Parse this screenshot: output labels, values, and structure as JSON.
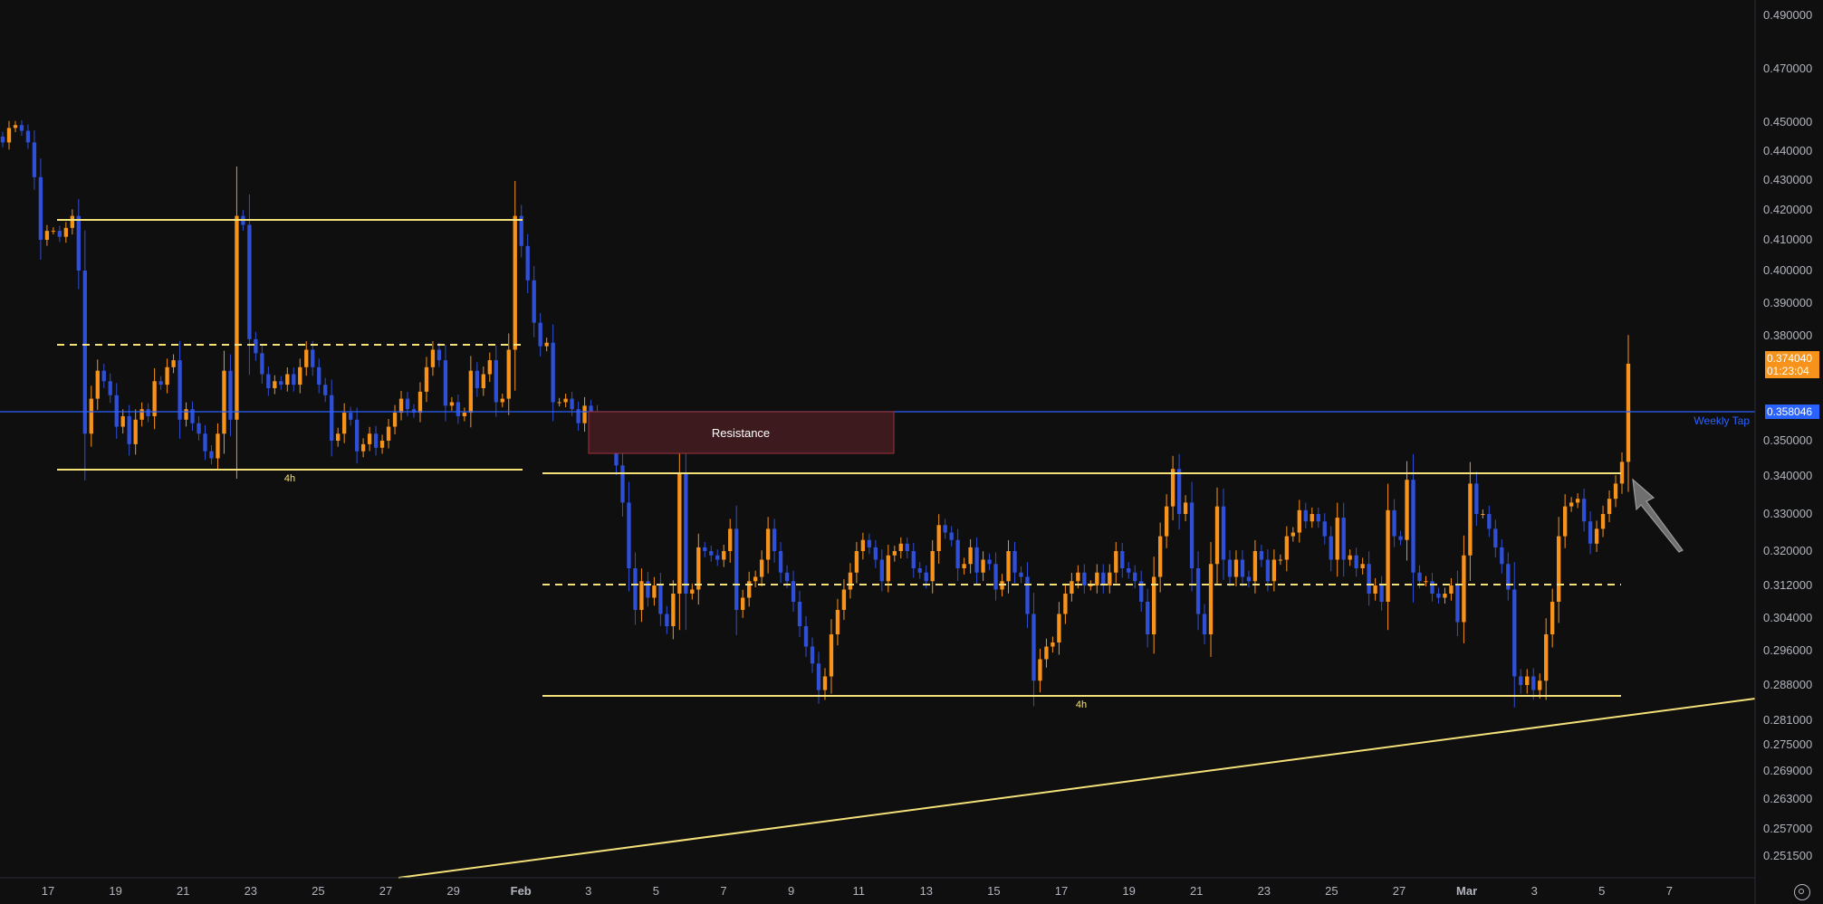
{
  "chart_data": {
    "type": "candlestick",
    "y_axis_ticks": [
      0.49,
      0.47,
      0.45,
      0.44,
      0.43,
      0.42,
      0.41,
      0.4,
      0.39,
      0.38,
      0.35,
      0.34,
      0.33,
      0.32,
      0.312,
      0.304,
      0.296,
      0.288,
      0.281,
      0.275,
      0.269,
      0.263,
      0.257,
      0.2515
    ],
    "y_axis_tick_labels": [
      "0.490000",
      "0.470000",
      "0.450000",
      "0.440000",
      "0.430000",
      "0.420000",
      "0.410000",
      "0.400000",
      "0.390000",
      "0.380000",
      "0.350000",
      "0.340000",
      "0.330000",
      "0.320000",
      "0.312000",
      "0.304000",
      "0.296000",
      "0.288000",
      "0.281000",
      "0.275000",
      "0.269000",
      "0.263000",
      "0.257000",
      "0.251500"
    ],
    "x_axis_ticks": [
      {
        "label": "17",
        "bold": false
      },
      {
        "label": "19",
        "bold": false
      },
      {
        "label": "21",
        "bold": false
      },
      {
        "label": "23",
        "bold": false
      },
      {
        "label": "25",
        "bold": false
      },
      {
        "label": "27",
        "bold": false
      },
      {
        "label": "29",
        "bold": false
      },
      {
        "label": "Feb",
        "bold": true
      },
      {
        "label": "3",
        "bold": false
      },
      {
        "label": "5",
        "bold": false
      },
      {
        "label": "7",
        "bold": false
      },
      {
        "label": "9",
        "bold": false
      },
      {
        "label": "11",
        "bold": false
      },
      {
        "label": "13",
        "bold": false
      },
      {
        "label": "15",
        "bold": false
      },
      {
        "label": "17",
        "bold": false
      },
      {
        "label": "19",
        "bold": false
      },
      {
        "label": "21",
        "bold": false
      },
      {
        "label": "23",
        "bold": false
      },
      {
        "label": "25",
        "bold": false
      },
      {
        "label": "27",
        "bold": false
      },
      {
        "label": "Mar",
        "bold": true
      },
      {
        "label": "3",
        "bold": false
      },
      {
        "label": "5",
        "bold": false
      },
      {
        "label": "7",
        "bold": false
      }
    ],
    "colors": {
      "up": "#f7931a",
      "down": "#2e4fd6",
      "level": "#f5e17a",
      "weekly": "#2962ff",
      "zone_fill": "#3d1a1e",
      "zone_border": "#a3333d",
      "background": "#0f0f0f"
    },
    "candles_close": [
      0.443,
      0.448,
      0.449,
      0.447,
      0.443,
      0.431,
      0.41,
      0.413,
      0.413,
      0.411,
      0.414,
      0.418,
      0.4,
      0.352,
      0.362,
      0.37,
      0.367,
      0.363,
      0.354,
      0.357,
      0.349,
      0.356,
      0.359,
      0.357,
      0.367,
      0.366,
      0.371,
      0.373,
      0.356,
      0.359,
      0.355,
      0.352,
      0.347,
      0.345,
      0.352,
      0.37,
      0.356,
      0.418,
      0.415,
      0.379,
      0.375,
      0.369,
      0.365,
      0.367,
      0.366,
      0.369,
      0.366,
      0.371,
      0.376,
      0.371,
      0.366,
      0.363,
      0.35,
      0.352,
      0.358,
      0.356,
      0.347,
      0.349,
      0.352,
      0.348,
      0.35,
      0.354,
      0.358,
      0.362,
      0.359,
      0.358,
      0.364,
      0.371,
      0.376,
      0.373,
      0.36,
      0.361,
      0.357,
      0.358,
      0.37,
      0.365,
      0.369,
      0.373,
      0.361,
      0.362,
      0.376,
      0.418,
      0.408,
      0.397,
      0.384,
      0.377,
      0.378,
      0.361,
      0.361,
      0.362,
      0.359,
      0.355,
      0.36,
      0.358,
      0.354,
      0.352,
      0.349,
      0.343,
      0.333,
      0.316,
      0.306,
      0.313,
      0.309,
      0.312,
      0.305,
      0.302,
      0.31,
      0.341,
      0.31,
      0.311,
      0.321,
      0.32,
      0.319,
      0.318,
      0.32,
      0.326,
      0.306,
      0.309,
      0.313,
      0.314,
      0.318,
      0.326,
      0.32,
      0.315,
      0.313,
      0.308,
      0.302,
      0.297,
      0.293,
      0.287,
      0.29,
      0.3,
      0.306,
      0.311,
      0.315,
      0.32,
      0.323,
      0.321,
      0.318,
      0.313,
      0.319,
      0.32,
      0.322,
      0.32,
      0.316,
      0.315,
      0.313,
      0.32,
      0.327,
      0.325,
      0.323,
      0.316,
      0.317,
      0.321,
      0.315,
      0.318,
      0.317,
      0.311,
      0.313,
      0.32,
      0.315,
      0.314,
      0.305,
      0.289,
      0.294,
      0.297,
      0.298,
      0.305,
      0.31,
      0.313,
      0.315,
      0.312,
      0.312,
      0.315,
      0.312,
      0.315,
      0.32,
      0.316,
      0.315,
      0.313,
      0.308,
      0.3,
      0.314,
      0.324,
      0.332,
      0.342,
      0.33,
      0.333,
      0.316,
      0.305,
      0.3,
      0.317,
      0.332,
      0.318,
      0.314,
      0.318,
      0.314,
      0.313,
      0.32,
      0.318,
      0.313,
      0.318,
      0.318,
      0.324,
      0.325,
      0.331,
      0.328,
      0.33,
      0.328,
      0.324,
      0.318,
      0.329,
      0.318,
      0.319,
      0.316,
      0.317,
      0.31,
      0.312,
      0.308,
      0.331,
      0.324,
      0.323,
      0.339,
      0.315,
      0.313,
      0.313,
      0.31,
      0.309,
      0.31,
      0.312,
      0.303,
      0.319,
      0.338,
      0.33,
      0.33,
      0.326,
      0.321,
      0.317,
      0.311,
      0.29,
      0.288,
      0.29,
      0.287,
      0.289,
      0.3,
      0.308,
      0.324,
      0.332,
      0.333,
      0.334,
      0.328,
      0.322,
      0.326,
      0.33,
      0.334,
      0.338,
      0.344,
      0.372
    ],
    "weekly_tap": 0.358046,
    "current_price": 0.37404,
    "countdown": "01:23:04",
    "annotations": {
      "resistance_label": "Resistance",
      "weekly_tap_label": "Weekly Tap",
      "timeframe_label_1": "4h",
      "timeframe_label_2": "4h"
    }
  }
}
